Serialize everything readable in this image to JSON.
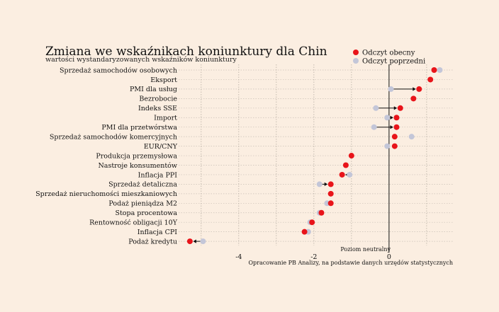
{
  "chart_data": {
    "type": "scatter",
    "title": "Zmiana we wskaźnikach koniunktury dla Chin",
    "subtitle": "wartości wystandaryzowanych wskaźników koniunktury",
    "legend": {
      "placement": "top-right",
      "current_label": "Odczyt obecny",
      "previous_label": "Odczyt poprzedni"
    },
    "colors": {
      "current": "#e8141a",
      "previous": "#c3c6d8",
      "arrow": "#111111"
    },
    "x_axis": {
      "ticks": [
        -4,
        -2,
        0
      ],
      "tick_labels": [
        "-4",
        "-2",
        "0"
      ],
      "range": [
        -5.6,
        1.7
      ],
      "grid": true
    },
    "reference_line": {
      "x": 0,
      "label": "Poziom neutralny"
    },
    "source_note": "Opracowanie PB Analizy, na podstawie danych urzędów statystycznych",
    "categories": [
      "Sprzedaż samochodów osobowych",
      "Eksport",
      "PMI dla usług",
      "Bezrobocie",
      "Indeks SSE",
      "Import",
      "PMI dla przetwórstwa",
      "Sprzedaż samochodów komercyjnych",
      "EUR/CNY",
      "Produkcja przemysłowa",
      "Nastroje konsumentów",
      "Inflacja PPI",
      "Sprzedaż detaliczna",
      "Sprzedaż nieruchomości mieszkaniowych",
      "Podaż pieniądza M2",
      "Stopa procentowa",
      "Rentowność obligacji 10Y",
      "Inflacja CPI",
      "Podaż kredytu"
    ],
    "series": [
      {
        "name": "Odczyt obecny",
        "values": [
          1.2,
          1.1,
          0.8,
          0.65,
          0.3,
          0.2,
          0.2,
          0.15,
          0.15,
          -1.0,
          -1.15,
          -1.25,
          -1.55,
          -1.55,
          -1.55,
          -1.8,
          -2.05,
          -2.25,
          -5.3
        ]
      },
      {
        "name": "Odczyt poprzedni",
        "values": [
          1.35,
          null,
          0.05,
          null,
          -0.35,
          -0.05,
          -0.4,
          0.6,
          -0.05,
          null,
          null,
          -1.05,
          -1.85,
          null,
          -1.65,
          -1.85,
          -2.1,
          -2.15,
          -4.95
        ]
      }
    ],
    "arrows": [
      false,
      true,
      true,
      false,
      true,
      true,
      true,
      false,
      false,
      false,
      false,
      true,
      true,
      false,
      false,
      false,
      false,
      false,
      true
    ]
  }
}
